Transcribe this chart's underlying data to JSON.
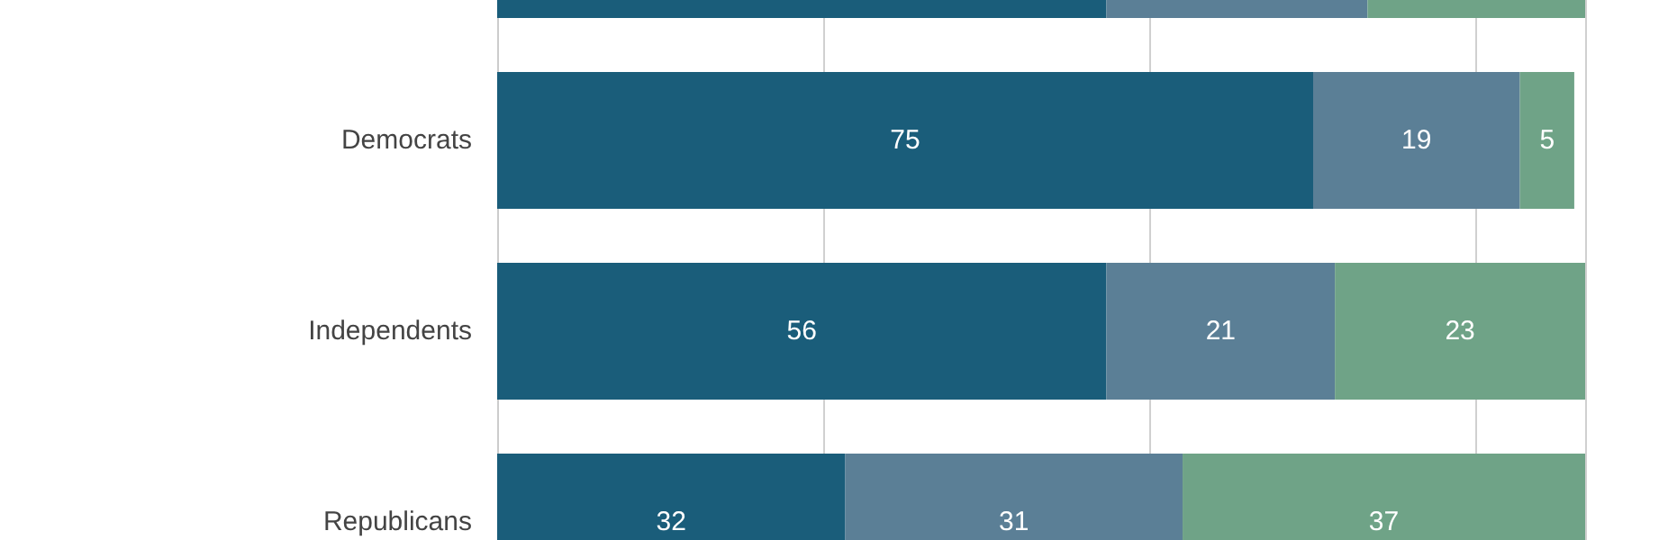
{
  "chart_data": {
    "type": "bar",
    "orientation": "horizontal",
    "stacked": true,
    "categories": [
      null,
      "Democrats",
      "Independents",
      "Republicans"
    ],
    "series": [
      {
        "color": "#1a5d7a",
        "values": [
          56,
          75,
          56,
          32
        ],
        "value_labels": [
          null,
          "75",
          "56",
          "32"
        ]
      },
      {
        "color": "#5b7f96",
        "values": [
          24,
          19,
          21,
          31
        ],
        "value_labels": [
          null,
          "19",
          "21",
          "31"
        ]
      },
      {
        "color": "#6fa387",
        "values": [
          20,
          5,
          23,
          37
        ],
        "value_labels": [
          null,
          "5",
          "23",
          "37"
        ]
      }
    ],
    "xlim": [
      0,
      100
    ],
    "tick_labels": "y",
    "grid": "x"
  }
}
